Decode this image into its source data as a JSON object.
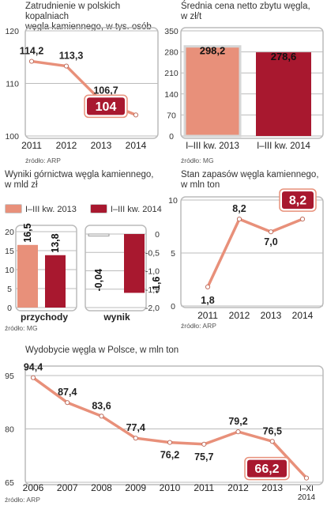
{
  "colors": {
    "line": "#e8907a",
    "bar_2013": "#e8907a",
    "bar_2014": "#a8182f",
    "grid": "#bbbbbb",
    "box": "#bbbbbb"
  },
  "chart_data": [
    {
      "id": "zatrudnienie",
      "type": "line",
      "title": "Zatrudnienie w polskich kopalniach\nwęgla kamiennego, w tys. osób",
      "source": "źródło: ARP",
      "x": [
        "2011",
        "2012",
        "2013",
        "2014"
      ],
      "values": [
        114.2,
        113.3,
        106.7,
        104
      ],
      "labels": [
        "114,2",
        "113,3",
        "106,7",
        "104"
      ],
      "highlight_last": true,
      "ylim": [
        100,
        120
      ],
      "yticks": [
        "100",
        "110",
        "120"
      ],
      "grid": true
    },
    {
      "id": "cena",
      "type": "bar",
      "title": "Średnia cena netto zbytu węgla,\nw zł/t",
      "source": "źródło: MG",
      "categories": [
        "I–III kw. 2013",
        "I–III kw. 2014"
      ],
      "values": [
        298.2,
        278.6
      ],
      "labels": [
        "298,2",
        "278,6"
      ],
      "ylim": [
        0,
        350
      ],
      "yticks": [
        "0",
        "70",
        "140",
        "210",
        "280",
        "350"
      ],
      "grid": true
    },
    {
      "id": "wyniki",
      "type": "bar",
      "title": "Wyniki górnictwa węgla kamiennego,\nw mld zł",
      "source": "źródło: MG",
      "legend": [
        "I–III kw. 2013",
        "I–III kw. 2014"
      ],
      "groups": [
        {
          "name": "przychody",
          "values": [
            16.5,
            13.8
          ],
          "labels": [
            "16,5",
            "13,8"
          ]
        },
        {
          "name": "wynik",
          "values": [
            -0.04,
            -1.6
          ],
          "labels": [
            "-0,04",
            "-1,6"
          ]
        }
      ],
      "ylim_left": [
        0,
        20
      ],
      "yticks_left": [
        "0",
        "5",
        "10",
        "15",
        "20"
      ],
      "ylim_right": [
        -2.0,
        0
      ],
      "yticks_right": [
        "-2,0",
        "-1,5",
        "-1,0",
        "-0,5",
        "0"
      ],
      "grid": true
    },
    {
      "id": "zapasy",
      "type": "line",
      "title": "Stan zapasów węgla kamiennego,\nw mln ton",
      "source": "źródło: ARP",
      "x": [
        "2011",
        "2012",
        "2013",
        "2014"
      ],
      "values": [
        1.8,
        8.2,
        7.0,
        8.2
      ],
      "labels": [
        "1,8",
        "8,2",
        "7,0",
        "8,2"
      ],
      "highlight_last": true,
      "ylim": [
        0,
        10
      ],
      "yticks": [
        "0",
        "5",
        "10"
      ],
      "grid": true
    },
    {
      "id": "wydobycie",
      "type": "line",
      "title": "Wydobycie węgla w Polsce, w mln ton",
      "source": "źródło: ARP",
      "x": [
        "2006",
        "2007",
        "2008",
        "2009",
        "2010",
        "2011",
        "2012",
        "2013",
        "I–XI\n2014"
      ],
      "values": [
        94.4,
        87.4,
        83.6,
        77.4,
        76.2,
        75.7,
        79.2,
        76.5,
        66.2
      ],
      "labels": [
        "94,4",
        "87,4",
        "83,6",
        "77,4",
        "76,2",
        "75,7",
        "79,2",
        "76,5",
        "66,2"
      ],
      "highlight_last": true,
      "ylim": [
        65,
        95
      ],
      "yticks": [
        "65",
        "80",
        "95"
      ],
      "grid": true
    }
  ]
}
